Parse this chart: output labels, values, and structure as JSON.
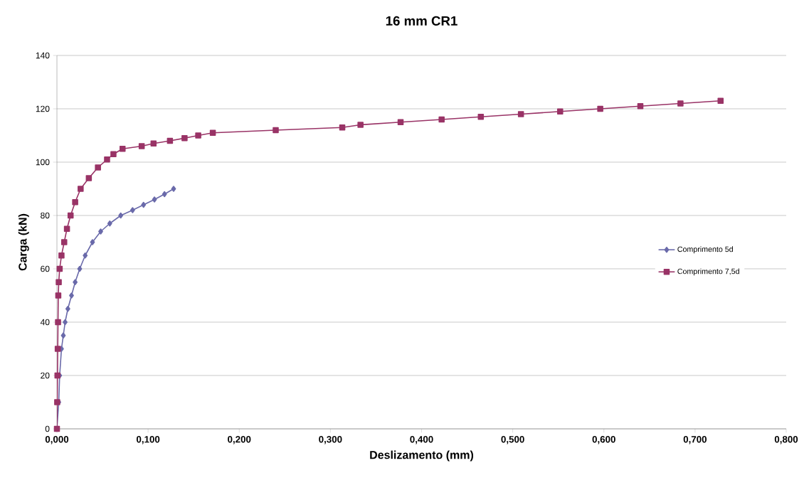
{
  "chart_data": {
    "type": "line",
    "title": "16 mm CR1",
    "xlabel": "Deslizamento (mm)",
    "ylabel": "Carga (kN)",
    "xlim": [
      0,
      0.8
    ],
    "ylim": [
      0,
      140
    ],
    "xticks": [
      {
        "value": 0,
        "label": "0,000"
      },
      {
        "value": 0.1,
        "label": "0,100"
      },
      {
        "value": 0.2,
        "label": "0,200"
      },
      {
        "value": 0.3,
        "label": "0,300"
      },
      {
        "value": 0.4,
        "label": "0,400"
      },
      {
        "value": 0.5,
        "label": "0,500"
      },
      {
        "value": 0.6,
        "label": "0,600"
      },
      {
        "value": 0.7,
        "label": "0,700"
      },
      {
        "value": 0.8,
        "label": "0,800"
      }
    ],
    "yticks": [
      0,
      20,
      40,
      60,
      80,
      100,
      120,
      140
    ],
    "grid": "y",
    "legend": "right",
    "line_style": "solid",
    "series": [
      {
        "name": "Comprimento 5d",
        "color": "#6a6aaa",
        "marker": "diamond",
        "x": [
          0,
          0.002,
          0.003,
          0.005,
          0.007,
          0.009,
          0.012,
          0.016,
          0.02,
          0.025,
          0.031,
          0.039,
          0.048,
          0.058,
          0.07,
          0.083,
          0.095,
          0.107,
          0.118,
          0.128
        ],
        "values": [
          0,
          10,
          20,
          30,
          35,
          40,
          45,
          50,
          55,
          60,
          65,
          70,
          74,
          77,
          80,
          82,
          84,
          86,
          88,
          90
        ]
      },
      {
        "name": "Comprimento 7,5d",
        "color": "#993366",
        "marker": "square",
        "x": [
          0,
          0.0003,
          0.0006,
          0.0009,
          0.0012,
          0.0015,
          0.002,
          0.003,
          0.005,
          0.008,
          0.011,
          0.015,
          0.02,
          0.026,
          0.035,
          0.045,
          0.055,
          0.062,
          0.072,
          0.093,
          0.106,
          0.124,
          0.14,
          0.155,
          0.171,
          0.24,
          0.313,
          0.333,
          0.377,
          0.422,
          0.465,
          0.509,
          0.552,
          0.596,
          0.64,
          0.684,
          0.728
        ],
        "values": [
          0,
          10,
          20,
          30,
          40,
          50,
          55,
          60,
          65,
          70,
          75,
          80,
          85,
          90,
          94,
          98,
          101,
          103,
          105,
          106,
          107,
          108,
          109,
          110,
          111,
          112,
          113,
          114,
          115,
          116,
          117,
          118,
          119,
          120,
          121,
          122,
          123
        ]
      }
    ]
  }
}
